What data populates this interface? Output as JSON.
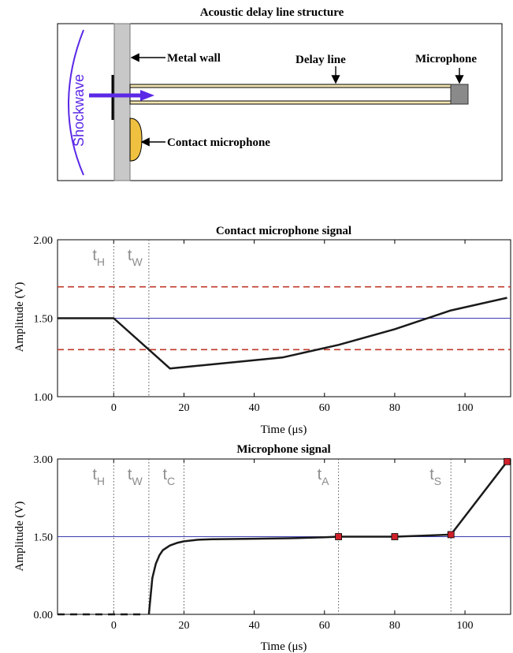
{
  "diagram": {
    "title": "Acoustic delay line structure",
    "labels": {
      "metal_wall": "Metal wall",
      "delay_line": "Delay line",
      "microphone": "Microphone",
      "contact_microphone": "Contact microphone",
      "shockwave": "Shockwave"
    },
    "colors": {
      "wall": "#c8c8c8",
      "shockwave": "#5a28e6",
      "contact_mic": "#f0c040",
      "tube": "#f2e3b0",
      "microphone": "#8a8a8a"
    }
  },
  "chart_data": [
    {
      "type": "line",
      "title": "Contact microphone signal",
      "xlabel": "Time (μs)",
      "ylabel": "Amplitude (V)",
      "xlim": [
        -16,
        113
      ],
      "ylim": [
        1.0,
        2.0
      ],
      "xticks": [
        0,
        20,
        40,
        60,
        80,
        100
      ],
      "yticks": [
        1.0,
        1.5,
        2.0
      ],
      "ytick_labels": [
        "1.00",
        "1.50",
        "2.00"
      ],
      "series": [
        {
          "color": "#1a1a1a",
          "style": "solid",
          "x": [
            -16,
            0,
            16,
            48,
            64,
            80,
            96,
            112
          ],
          "y": [
            1.5,
            1.5,
            1.18,
            1.25,
            1.33,
            1.43,
            1.55,
            1.63
          ]
        }
      ],
      "hlines": [
        {
          "y": 1.5,
          "color": "#3a3ab0",
          "style": "solid"
        },
        {
          "y": 1.7,
          "color": "#c0392b",
          "style": "dashed"
        },
        {
          "y": 1.3,
          "color": "#c0392b",
          "style": "dashed"
        }
      ],
      "events": [
        {
          "main": "t",
          "sub": "H",
          "x": 0
        },
        {
          "main": "t",
          "sub": "W",
          "x": 10
        }
      ]
    },
    {
      "type": "line",
      "title": "Microphone signal",
      "xlabel": "Time (μs)",
      "ylabel": "Amplitude (V)",
      "xlim": [
        -16,
        113
      ],
      "ylim": [
        0.0,
        3.0
      ],
      "xticks": [
        0,
        20,
        40,
        60,
        80,
        100
      ],
      "yticks": [
        0.0,
        1.5,
        3.0
      ],
      "ytick_labels": [
        "0.00",
        "1.50",
        "3.00"
      ],
      "dashed_segment": {
        "x": [
          -16,
          8
        ],
        "y": [
          0.0,
          0.0
        ],
        "color": "#1a1a1a"
      },
      "series": [
        {
          "color": "#1a1a1a",
          "style": "solid",
          "x": [
            10,
            10.5,
            11,
            12,
            13,
            14,
            16,
            18,
            20,
            24,
            28,
            40,
            50,
            60,
            64,
            72,
            80,
            88,
            96,
            112
          ],
          "y": [
            0.0,
            0.35,
            0.7,
            0.98,
            1.14,
            1.24,
            1.33,
            1.38,
            1.41,
            1.44,
            1.45,
            1.46,
            1.47,
            1.49,
            1.5,
            1.5,
            1.5,
            1.52,
            1.54,
            2.95
          ]
        }
      ],
      "markers": {
        "color": "#d0202a",
        "x": [
          64,
          80,
          96,
          112
        ],
        "y": [
          1.5,
          1.5,
          1.54,
          2.95
        ]
      },
      "hlines": [
        {
          "y": 1.5,
          "color": "#3a3ab0",
          "style": "solid"
        }
      ],
      "events": [
        {
          "main": "t",
          "sub": "H",
          "x": 0
        },
        {
          "main": "t",
          "sub": "W",
          "x": 10
        },
        {
          "main": "t",
          "sub": "C",
          "x": 20
        },
        {
          "main": "t",
          "sub": "A",
          "x": 64
        },
        {
          "main": "t",
          "sub": "S",
          "x": 96
        }
      ]
    }
  ]
}
